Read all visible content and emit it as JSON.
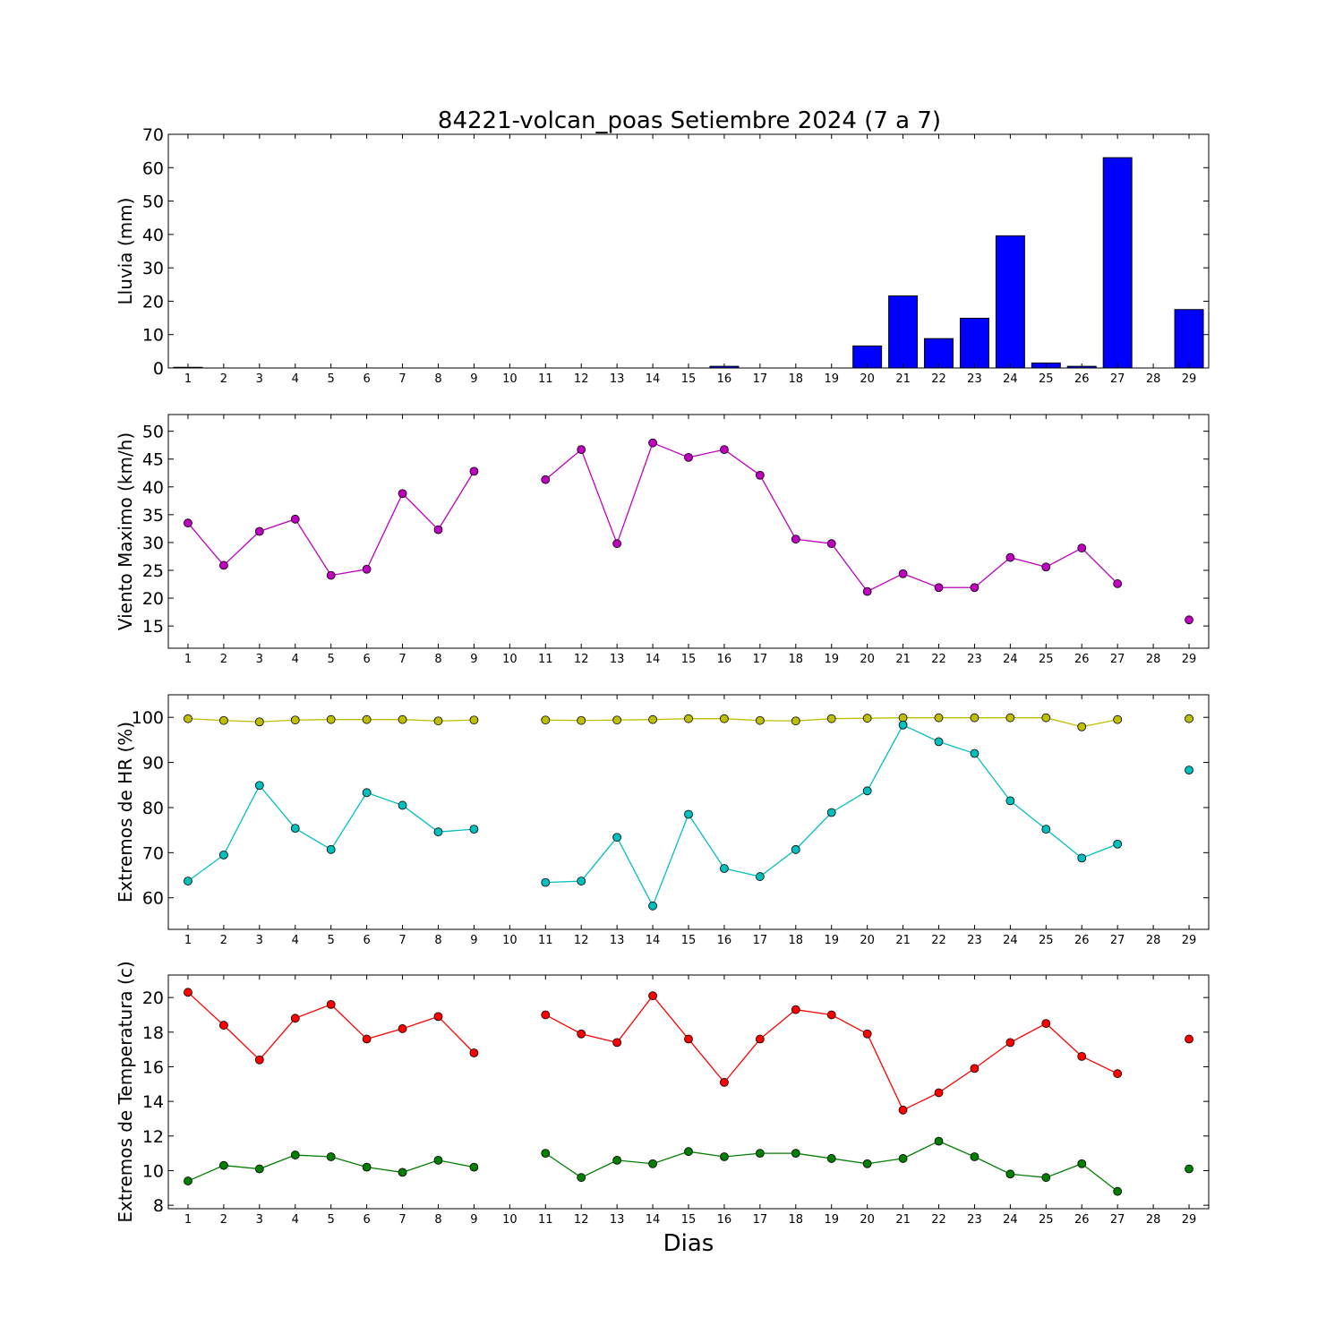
{
  "chart_data": {
    "title": "84221-volcan_poas Setiembre 2024  (7 a 7)",
    "xlabel": "Dias",
    "days": [
      1,
      2,
      3,
      4,
      5,
      6,
      7,
      8,
      9,
      10,
      11,
      12,
      13,
      14,
      15,
      16,
      17,
      18,
      19,
      20,
      21,
      22,
      23,
      24,
      25,
      26,
      27,
      28,
      29
    ],
    "panels": [
      {
        "type": "bar",
        "ylabel": "Lluvia (mm)",
        "ylim": [
          0,
          70
        ],
        "yticks": [
          0,
          10,
          20,
          30,
          40,
          50,
          60,
          70
        ],
        "series": [
          {
            "color": "#0000ff",
            "values": [
              0.2,
              0,
              0,
              0,
              0,
              0,
              0,
              0,
              0,
              0,
              0,
              0,
              0,
              0,
              0,
              0.5,
              0,
              0,
              0,
              6.6,
              21.6,
              8.8,
              14.9,
              39.6,
              1.5,
              0.5,
              63.0,
              null,
              17.5
            ]
          }
        ]
      },
      {
        "type": "line",
        "ylabel": "Viento Maximo (km/h)",
        "ylim": [
          11,
          53
        ],
        "yticks": [
          15,
          20,
          25,
          30,
          35,
          40,
          45,
          50
        ],
        "series": [
          {
            "color": "#bf00bf",
            "values": [
              33.5,
              25.9,
              32.0,
              34.2,
              24.1,
              25.2,
              38.8,
              32.3,
              42.8,
              null,
              41.3,
              46.7,
              29.8,
              47.9,
              45.3,
              46.7,
              42.1,
              30.6,
              29.8,
              21.2,
              24.4,
              21.9,
              21.9,
              27.3,
              25.6,
              29.0,
              22.6,
              null,
              16.1
            ]
          }
        ]
      },
      {
        "type": "line",
        "ylabel": "Extremos de HR (%)",
        "ylim": [
          53,
          105
        ],
        "yticks": [
          60,
          70,
          80,
          90,
          100
        ],
        "series": [
          {
            "color": "#bfbf00",
            "values": [
              99.7,
              99.3,
              99.0,
              99.4,
              99.5,
              99.5,
              99.5,
              99.2,
              99.4,
              null,
              99.4,
              99.3,
              99.4,
              99.5,
              99.7,
              99.7,
              99.3,
              99.2,
              99.7,
              99.8,
              99.9,
              99.9,
              99.9,
              99.9,
              99.9,
              97.9,
              99.5,
              null,
              99.7
            ]
          },
          {
            "color": "#00bfbf",
            "values": [
              63.7,
              69.5,
              84.9,
              75.4,
              70.7,
              83.3,
              80.5,
              74.6,
              75.2,
              null,
              63.4,
              63.7,
              73.4,
              58.2,
              78.5,
              66.5,
              64.7,
              70.7,
              78.9,
              83.7,
              98.3,
              94.6,
              92.0,
              81.5,
              75.2,
              68.8,
              71.9,
              null,
              88.3
            ]
          }
        ]
      },
      {
        "type": "line",
        "ylabel": "Extremos de Temperatura (c)",
        "ylim": [
          7.8,
          21.3
        ],
        "yticks": [
          8,
          10,
          12,
          14,
          16,
          18,
          20
        ],
        "series": [
          {
            "color": "#ff0000",
            "values": [
              20.3,
              18.4,
              16.4,
              18.8,
              19.6,
              17.6,
              18.2,
              18.9,
              16.8,
              null,
              19.0,
              17.9,
              17.4,
              20.1,
              17.6,
              15.1,
              17.6,
              19.3,
              19.0,
              17.9,
              13.5,
              14.5,
              15.9,
              17.4,
              18.5,
              16.6,
              15.6,
              null,
              17.6
            ]
          },
          {
            "color": "#007f00",
            "values": [
              9.4,
              10.3,
              10.1,
              10.9,
              10.8,
              10.2,
              9.9,
              10.6,
              10.2,
              null,
              11.0,
              9.6,
              10.6,
              10.4,
              11.1,
              10.8,
              11.0,
              11.0,
              10.7,
              10.4,
              10.7,
              11.7,
              10.8,
              9.8,
              9.6,
              10.4,
              8.8,
              null,
              10.1
            ]
          }
        ]
      }
    ]
  }
}
